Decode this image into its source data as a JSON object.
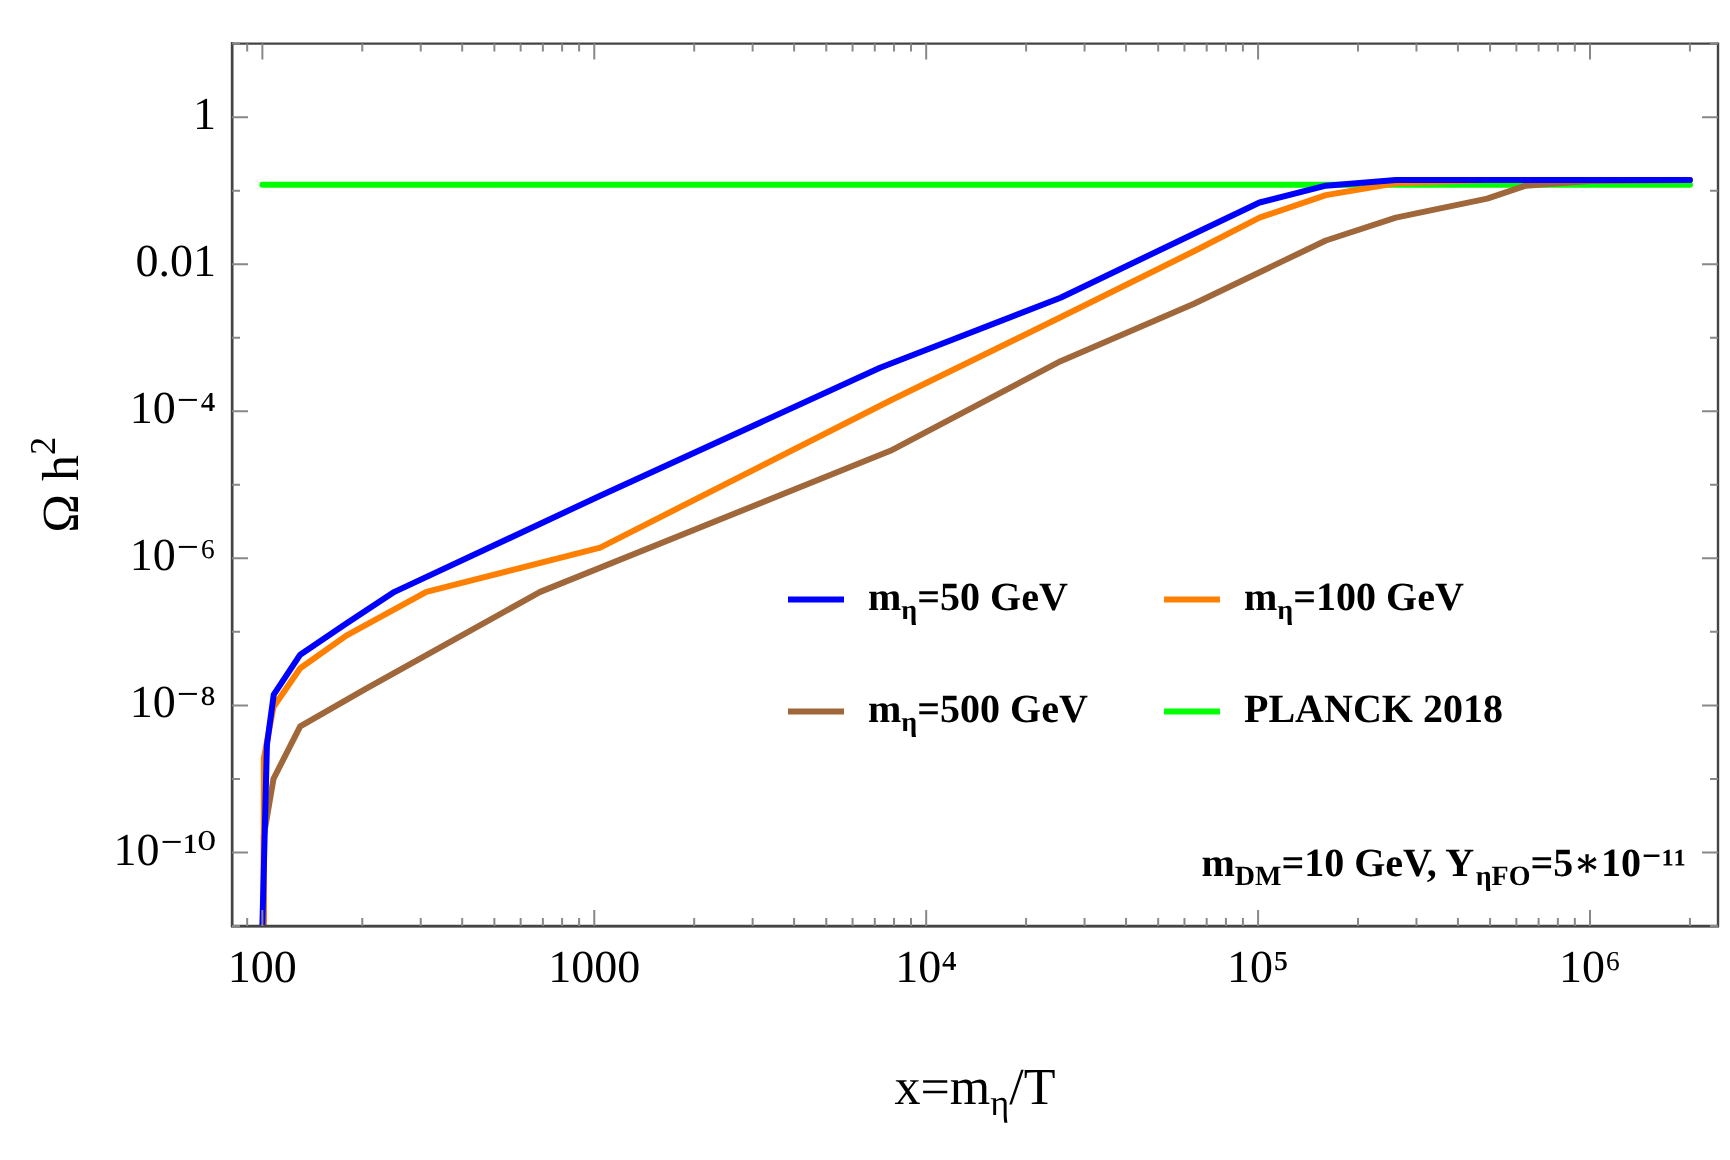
{
  "chart_data": {
    "type": "line",
    "xlabel": "x=m$_{η}$/T",
    "ylabel": "Ω h$^{2}$",
    "log": "xy",
    "grid": false,
    "legend": "right",
    "marker": "none",
    "line_style": "solid",
    "xlim": [
      81,
      2430000
    ],
    "ylim": [
      1e-11,
      10
    ],
    "xticks": [
      {
        "value": 90,
        "label": null
      },
      100,
      {
        "value": 200,
        "label": null
      },
      {
        "value": 300,
        "label": null
      },
      {
        "value": 400,
        "label": null
      },
      {
        "value": 500,
        "label": null
      },
      {
        "value": 600,
        "label": null
      },
      {
        "value": 700,
        "label": null
      },
      {
        "value": 800,
        "label": null
      },
      {
        "value": 900,
        "label": null
      },
      1000,
      {
        "value": 2000,
        "label": null
      },
      {
        "value": 3000,
        "label": null
      },
      {
        "value": 4000,
        "label": null
      },
      {
        "value": 5000,
        "label": null
      },
      {
        "value": 6000,
        "label": null
      },
      {
        "value": 7000,
        "label": null
      },
      {
        "value": 8000,
        "label": null
      },
      {
        "value": 9000,
        "label": null
      },
      {
        "value": 10000,
        "label": "10⁴"
      },
      {
        "value": 20000,
        "label": null
      },
      {
        "value": 30000,
        "label": null
      },
      {
        "value": 40000,
        "label": null
      },
      {
        "value": 50000,
        "label": null
      },
      {
        "value": 60000,
        "label": null
      },
      {
        "value": 70000,
        "label": null
      },
      {
        "value": 80000,
        "label": null
      },
      {
        "value": 90000,
        "label": null
      },
      {
        "value": 100000,
        "label": "10⁵"
      },
      {
        "value": 200000,
        "label": null
      },
      {
        "value": 300000,
        "label": null
      },
      {
        "value": 400000,
        "label": null
      },
      {
        "value": 500000,
        "label": null
      },
      {
        "value": 600000,
        "label": null
      },
      {
        "value": 700000,
        "label": null
      },
      {
        "value": 800000,
        "label": null
      },
      {
        "value": 900000,
        "label": null
      },
      {
        "value": 1000000,
        "label": "10⁶"
      },
      {
        "value": 2000000,
        "label": null
      }
    ],
    "yticks": [
      {
        "value": 1e-11,
        "label": null
      },
      {
        "value": 1e-10,
        "label": "10⁻¹⁰"
      },
      {
        "value": 1e-09,
        "label": null
      },
      {
        "value": 1e-08,
        "label": "10⁻⁸"
      },
      {
        "value": 1e-07,
        "label": null
      },
      {
        "value": 1e-06,
        "label": "10⁻⁶"
      },
      {
        "value": 1e-05,
        "label": null
      },
      {
        "value": 0.0001,
        "label": "10⁻⁴"
      },
      {
        "value": 0.001,
        "label": null
      },
      0.01,
      {
        "value": 0.1,
        "label": null
      },
      1,
      {
        "value": 10,
        "label": null
      }
    ],
    "annotations": [
      "m$_{DM}$=10 GeV, Y$_{ηFO}$=5∗10⁻¹¹"
    ],
    "series": [
      {
        "name": "m$_{η}$=50 GeV",
        "color": "#0000ff",
        "x": [
          100,
          103.2,
          108.2,
          130,
          179,
          250,
          1042,
          7260,
          25400,
          64100,
          101000,
          160000,
          260000,
          2000000
        ],
        "values": [
          1e-11,
          2.9e-09,
          1.4e-08,
          4.9e-08,
          1.3e-07,
          3.5e-07,
          7.1e-06,
          0.00039,
          0.0035,
          0.026,
          0.069,
          0.117,
          0.14,
          0.14
        ]
      },
      {
        "name": "m$_{η}$=100 GeV",
        "color": "#ff8000",
        "x": [
          100,
          101,
          108,
          130,
          179,
          312,
          1042,
          7800,
          25400,
          64100,
          101000,
          160000,
          260000,
          490000,
          2000000
        ],
        "values": [
          1e-11,
          1.9e-09,
          9.5e-09,
          3.2e-08,
          8.9e-08,
          3.5e-07,
          1.4e-06,
          0.00014,
          0.0019,
          0.015,
          0.043,
          0.087,
          0.126,
          0.14,
          0.14
        ]
      },
      {
        "name": "m$_{η}$=500 GeV",
        "color": "#a0673a",
        "x": [
          100,
          101,
          108,
          130,
          206,
          687,
          7800,
          25400,
          64100,
          160000,
          260000,
          490000,
          640000,
          1000000,
          2000000
        ],
        "values": [
          1e-11,
          1.7e-10,
          1e-09,
          5.2e-09,
          1.7e-08,
          3.5e-07,
          2.9e-05,
          0.00048,
          0.0029,
          0.021,
          0.043,
          0.078,
          0.117,
          0.135,
          0.14
        ]
      },
      {
        "name": "PLANCK 2018",
        "color": "#00ff00",
        "x": [
          100,
          2000000
        ],
        "values": [
          0.12,
          0.12
        ]
      }
    ]
  }
}
